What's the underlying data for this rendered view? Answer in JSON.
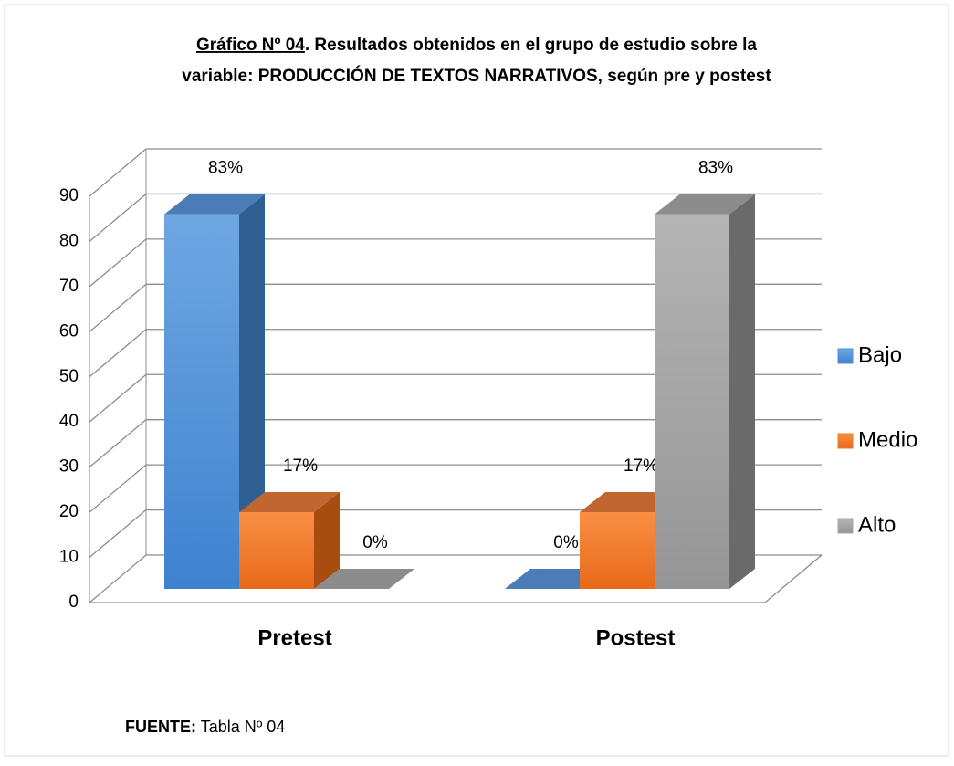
{
  "chart_data": {
    "type": "bar3d",
    "title": [
      "Gráfico Nº 04",
      ". Resultados obtenidos en el grupo de estudio  sobre la",
      "variable: PRODUCCIÓN DE TEXTOS NARRATIVOS, según pre y postest"
    ],
    "categories": [
      "Pretest",
      "Postest"
    ],
    "series": [
      {
        "name": "Bajo",
        "color": "#4f8fd8",
        "values": [
          83,
          0
        ],
        "value_labels": [
          "83%",
          "0%"
        ]
      },
      {
        "name": "Medio",
        "color": "#f07a2a",
        "values": [
          17,
          17
        ],
        "value_labels": [
          "17%",
          "17%"
        ]
      },
      {
        "name": "Alto",
        "color": "#a6a6a6",
        "values": [
          0,
          83
        ],
        "value_labels": [
          "0%",
          "83%"
        ]
      }
    ],
    "ylim": [
      0,
      90
    ],
    "yticks": [
      0,
      10,
      20,
      30,
      40,
      50,
      60,
      70,
      80,
      90
    ],
    "grid": true,
    "legend": "right",
    "source_label": "FUENTE:",
    "source": "Tabla Nº 04"
  }
}
